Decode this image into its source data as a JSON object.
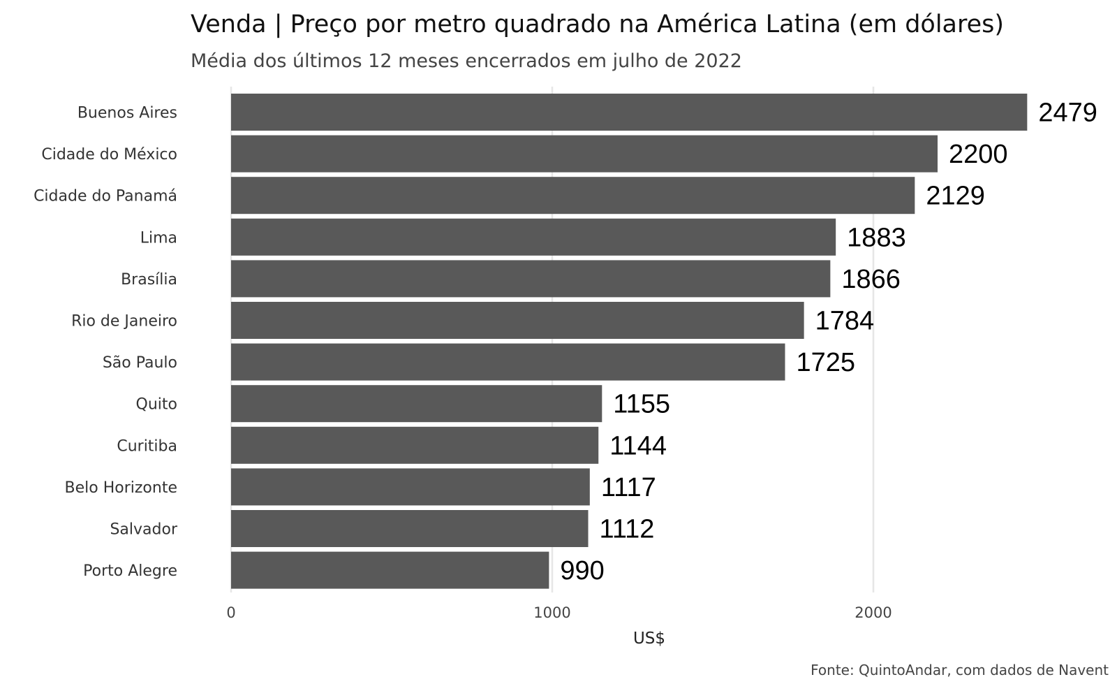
{
  "chart_data": {
    "type": "bar",
    "orientation": "horizontal",
    "title": "Venda | Preço por metro quadrado na América Latina (em dólares)",
    "subtitle": "Média dos últimos 12 meses encerrados em julho de 2022",
    "xlabel": "US$",
    "ylabel": "",
    "caption": "Fonte: QuintoAndar, com dados de Navent",
    "categories": [
      "Buenos Aires",
      "Cidade do México",
      "Cidade do Panamá",
      "Lima",
      "Brasília",
      "Rio de Janeiro",
      "São Paulo",
      "Quito",
      "Curitiba",
      "Belo Horizonte",
      "Salvador",
      "Porto Alegre"
    ],
    "values": [
      2479,
      2200,
      2129,
      1883,
      1866,
      1784,
      1725,
      1155,
      1144,
      1117,
      1112,
      990
    ],
    "xlim": [
      0,
      2650
    ],
    "xticks": [
      0,
      1000,
      2000
    ],
    "xtick_labels": [
      "0",
      "1000",
      "2000"
    ],
    "grid": true,
    "legend": "none",
    "bar_color": "#595959"
  }
}
